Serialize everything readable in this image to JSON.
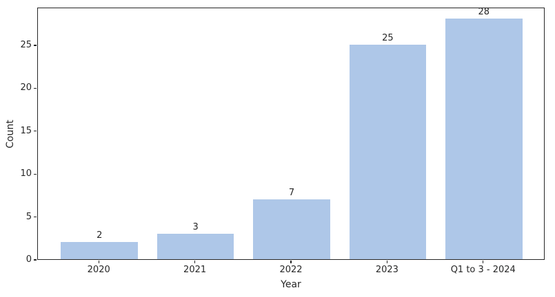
{
  "chart_data": {
    "type": "bar",
    "title": "",
    "xlabel": "Year",
    "ylabel": "Count",
    "categories": [
      "2020",
      "2021",
      "2022",
      "2023",
      "Q1 to 3 - 2024"
    ],
    "values": [
      2,
      3,
      7,
      25,
      28
    ],
    "bar_labels": [
      "2",
      "3",
      "7",
      "25",
      "28"
    ],
    "yticks": [
      0,
      5,
      10,
      15,
      20,
      25
    ],
    "ylim": [
      0,
      29.4
    ],
    "bar_width_fraction": 0.8,
    "grid": false,
    "legend": "none",
    "colors": {
      "bar_fill": "#aec7e8",
      "axis": "#262626",
      "text": "#262626",
      "background": "#ffffff"
    }
  }
}
